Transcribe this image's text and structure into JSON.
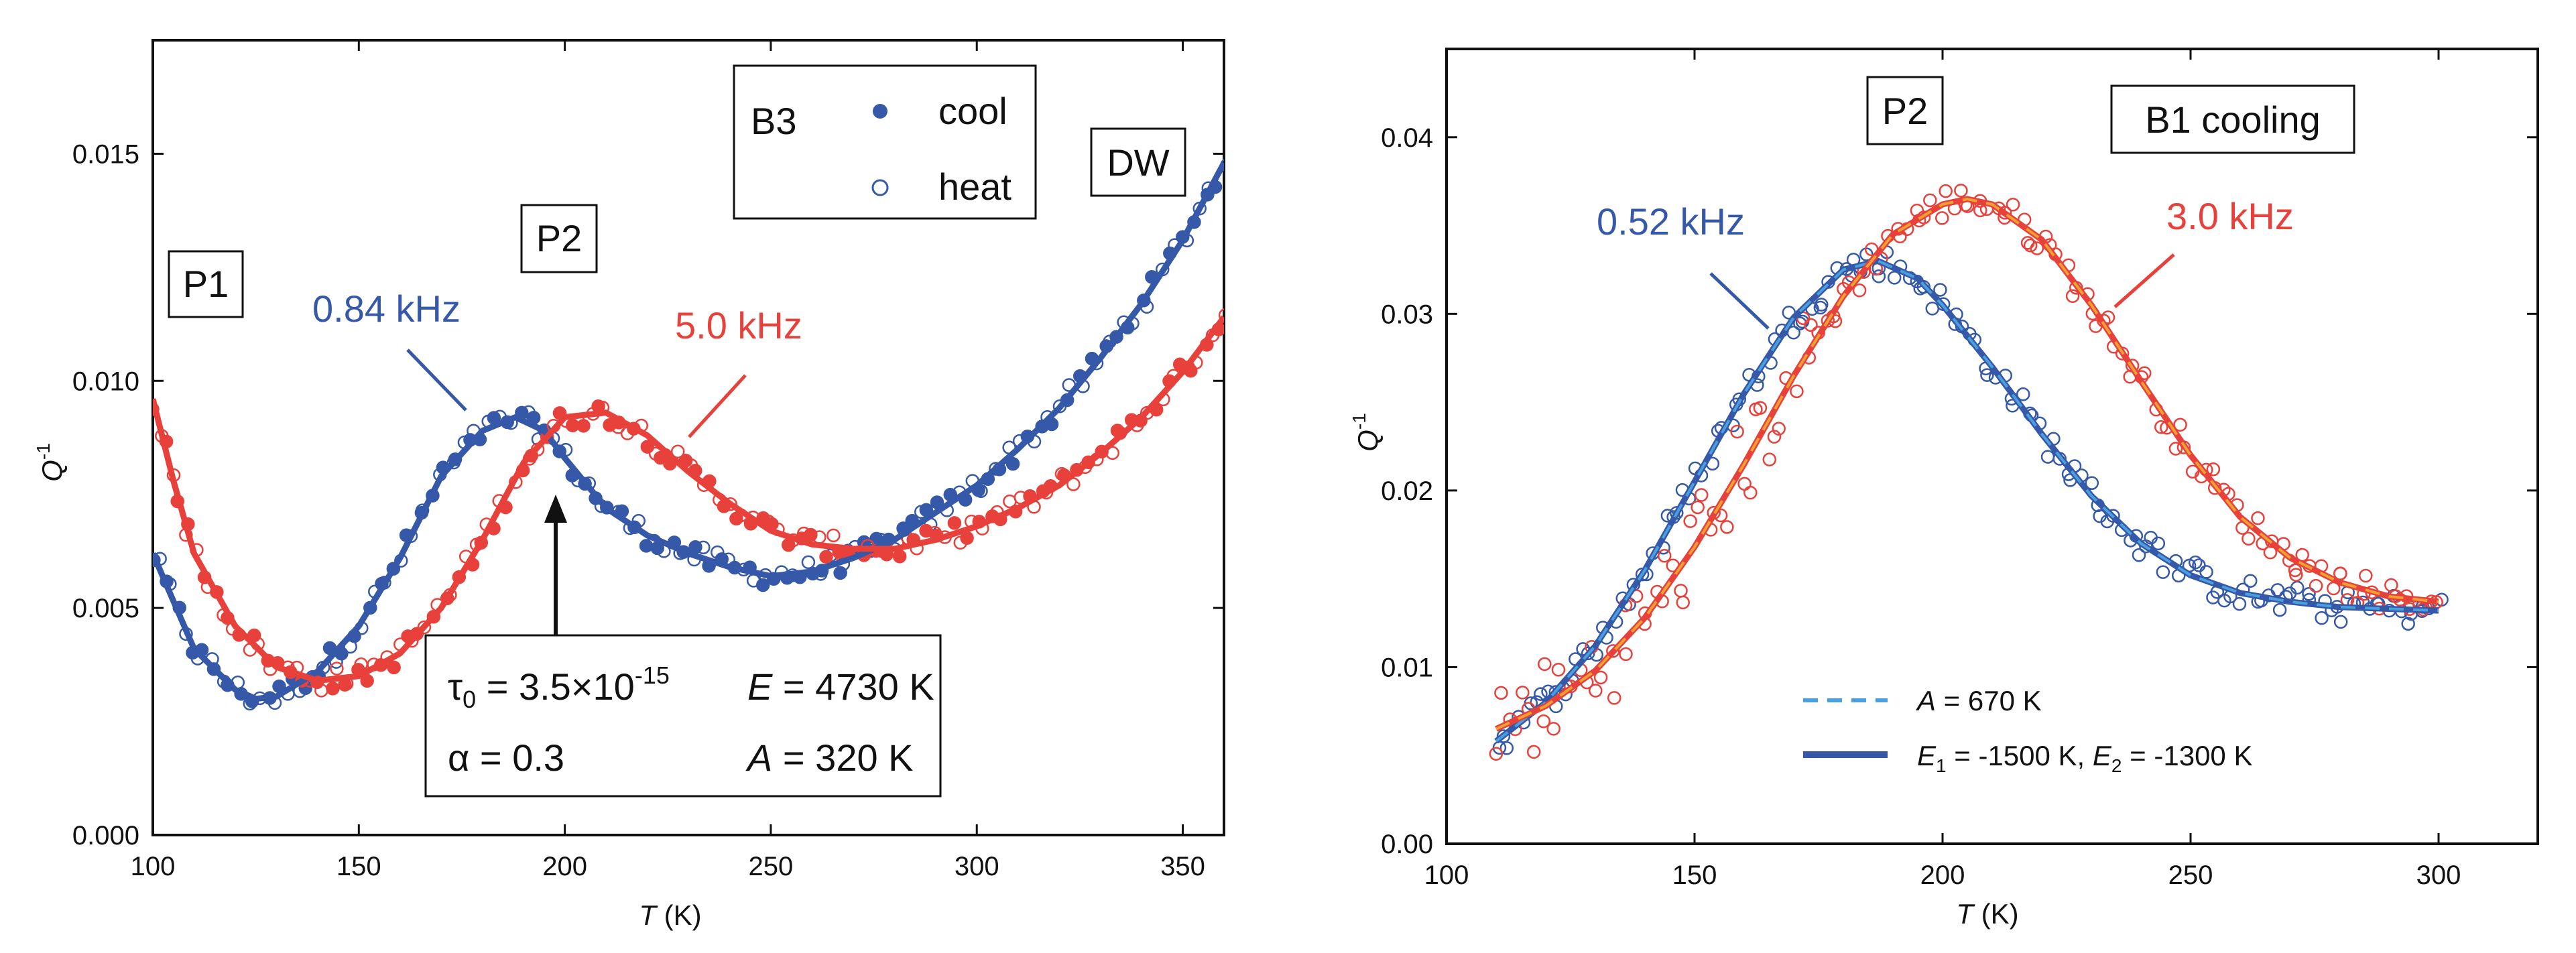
{
  "colors": {
    "blue": "#3558a8",
    "red": "#e8403a",
    "orange": "#f0a030",
    "lightblue": "#4aa0dc",
    "axis": "#111111"
  },
  "chart_data": [
    {
      "type": "scatter",
      "title": "",
      "xlabel": "T (K)",
      "ylabel": "Q-1",
      "xlim": [
        100,
        360
      ],
      "ylim": [
        0.0,
        0.0175
      ],
      "xticks": [
        100,
        150,
        200,
        250,
        300,
        350
      ],
      "xtick_labels": [
        "100",
        "150",
        "200",
        "250",
        "300",
        "350"
      ],
      "yticks": [
        0.0,
        0.005,
        0.01,
        0.015
      ],
      "ytick_labels": [
        "0.000",
        "0.005",
        "0.010",
        "0.015"
      ],
      "legend": {
        "sample": "B3",
        "entries": [
          "cool",
          "heat"
        ],
        "placement": "top-center"
      },
      "labels": {
        "p1": "P1",
        "p2": "P2",
        "dw": "DW",
        "freq_blue": "0.84 kHz",
        "freq_red": "5.0 kHz"
      },
      "params": {
        "tau0": "τ0 = 3.5×10-15",
        "energy": "E = 4730 K",
        "alpha": "α = 0.3",
        "a": "A = 320 K"
      },
      "series": [
        {
          "name": "0.84 kHz cool (fit)",
          "color": "blue",
          "x": [
            100,
            110,
            120,
            125,
            130,
            140,
            150,
            160,
            170,
            180,
            188,
            195,
            200,
            210,
            220,
            230,
            240,
            250,
            260,
            270,
            280,
            290,
            300,
            310,
            320,
            330,
            340,
            350,
            360
          ],
          "y": [
            0.0062,
            0.0041,
            0.0032,
            0.003,
            0.00305,
            0.0036,
            0.0046,
            0.0061,
            0.0079,
            0.0089,
            0.0092,
            0.0089,
            0.0083,
            0.0072,
            0.0066,
            0.0062,
            0.0059,
            0.0057,
            0.0058,
            0.0061,
            0.0065,
            0.0071,
            0.0077,
            0.0085,
            0.0094,
            0.0105,
            0.0117,
            0.0131,
            0.0148
          ]
        },
        {
          "name": "5.0 kHz cool (fit)",
          "color": "red",
          "x": [
            100,
            105,
            110,
            120,
            130,
            140,
            150,
            160,
            170,
            180,
            190,
            200,
            210,
            220,
            230,
            240,
            250,
            260,
            270,
            280,
            290,
            300,
            310,
            320,
            330,
            340,
            350,
            360
          ],
          "y": [
            0.0096,
            0.0078,
            0.0062,
            0.0046,
            0.0037,
            0.0034,
            0.0035,
            0.004,
            0.005,
            0.0065,
            0.0082,
            0.0092,
            0.0093,
            0.0088,
            0.008,
            0.0073,
            0.0067,
            0.0064,
            0.0063,
            0.0063,
            0.0065,
            0.0068,
            0.0072,
            0.0077,
            0.0084,
            0.0092,
            0.0102,
            0.0114
          ]
        }
      ]
    },
    {
      "type": "scatter",
      "title": "",
      "xlabel": "T (K)",
      "ylabel": "Q-1",
      "xlim": [
        100,
        320
      ],
      "ylim": [
        0.0,
        0.045
      ],
      "xticks": [
        100,
        150,
        200,
        250,
        300
      ],
      "xtick_labels": [
        "100",
        "150",
        "200",
        "250",
        "300"
      ],
      "yticks": [
        0.0,
        0.01,
        0.02,
        0.03,
        0.04
      ],
      "ytick_labels": [
        "0.00",
        "0.01",
        "0.02",
        "0.03",
        "0.04"
      ],
      "labels": {
        "p2": "P2",
        "sample": "B1 cooling",
        "freq_blue": "0.52 kHz",
        "freq_red": "3.0 kHz"
      },
      "legend": {
        "entries": [
          "A = 670 K",
          "E1 = -1500 K,   E2 = -1300 K"
        ],
        "placement": "bottom-center"
      },
      "series": [
        {
          "name": "0.52 kHz (fit)",
          "color": "blue",
          "x": [
            110,
            120,
            130,
            140,
            150,
            160,
            170,
            180,
            187,
            195,
            200,
            210,
            220,
            230,
            240,
            250,
            260,
            270,
            280,
            290,
            300
          ],
          "y": [
            0.0058,
            0.008,
            0.0112,
            0.0155,
            0.0205,
            0.0255,
            0.0298,
            0.0325,
            0.033,
            0.032,
            0.0305,
            0.027,
            0.0232,
            0.0197,
            0.017,
            0.0152,
            0.0142,
            0.0137,
            0.0134,
            0.0133,
            0.0132
          ]
        },
        {
          "name": "3.0 kHz (fit)",
          "color": "red",
          "x": [
            110,
            120,
            130,
            140,
            150,
            160,
            170,
            180,
            190,
            200,
            205,
            210,
            220,
            230,
            240,
            250,
            260,
            270,
            280,
            290,
            300
          ],
          "y": [
            0.0065,
            0.0078,
            0.0098,
            0.0128,
            0.0168,
            0.0215,
            0.0265,
            0.031,
            0.0345,
            0.0362,
            0.0365,
            0.0362,
            0.0342,
            0.0305,
            0.0262,
            0.022,
            0.0185,
            0.0162,
            0.0148,
            0.014,
            0.0137
          ]
        }
      ]
    }
  ]
}
